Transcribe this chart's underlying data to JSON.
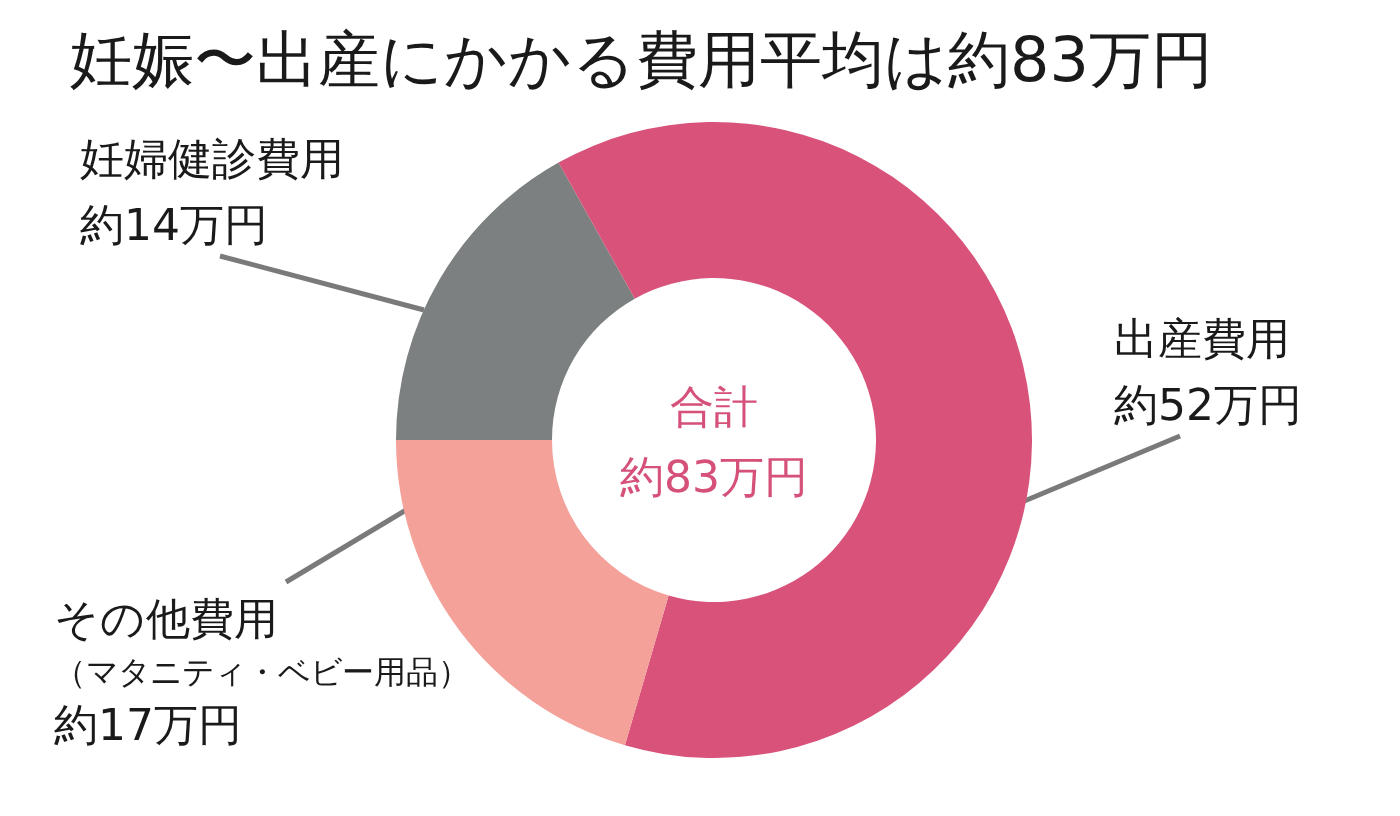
{
  "chart_data": {
    "type": "donut",
    "title": "妊娠〜出産にかかる費用平均は約83万円",
    "categories": [
      "妊婦健診費用",
      "出産費用",
      "その他費用（マタニティ・ベビー用品）"
    ],
    "values": [
      14,
      52,
      17
    ],
    "colors": [
      "#7d8081",
      "#d8527a",
      "#f4a19a"
    ],
    "value_labels": [
      "約14万円",
      "約52万円",
      "約17万円"
    ],
    "annotations": [
      "合計",
      "約83万円"
    ]
  }
}
